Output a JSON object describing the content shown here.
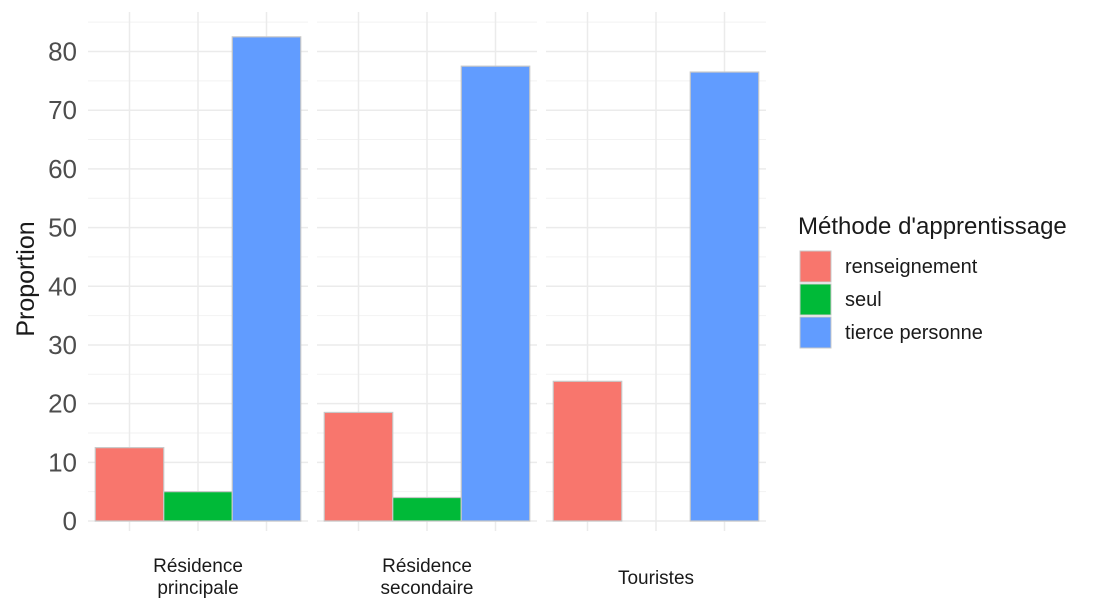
{
  "chart_data": {
    "type": "bar",
    "layout": "grouped-faceted",
    "ylabel": "Proportion",
    "xlabel": "",
    "ylim": [
      0,
      85
    ],
    "yticks": [
      0,
      10,
      20,
      30,
      40,
      50,
      60,
      70,
      80
    ],
    "grid": true,
    "categories": [
      "Résidence\nprincipale",
      "Résidence\nsecondaire",
      "Touristes"
    ],
    "legend": {
      "title": "Méthode d'apprentissage",
      "placement": "right"
    },
    "series": [
      {
        "name": "renseignement",
        "color": "#F8766D",
        "values": [
          12.5,
          18.5,
          23.8
        ]
      },
      {
        "name": "seul",
        "color": "#00BA38",
        "values": [
          5.0,
          4.0,
          0
        ]
      },
      {
        "name": "tierce personne",
        "color": "#619CFF",
        "values": [
          82.5,
          77.5,
          76.5
        ]
      }
    ]
  }
}
